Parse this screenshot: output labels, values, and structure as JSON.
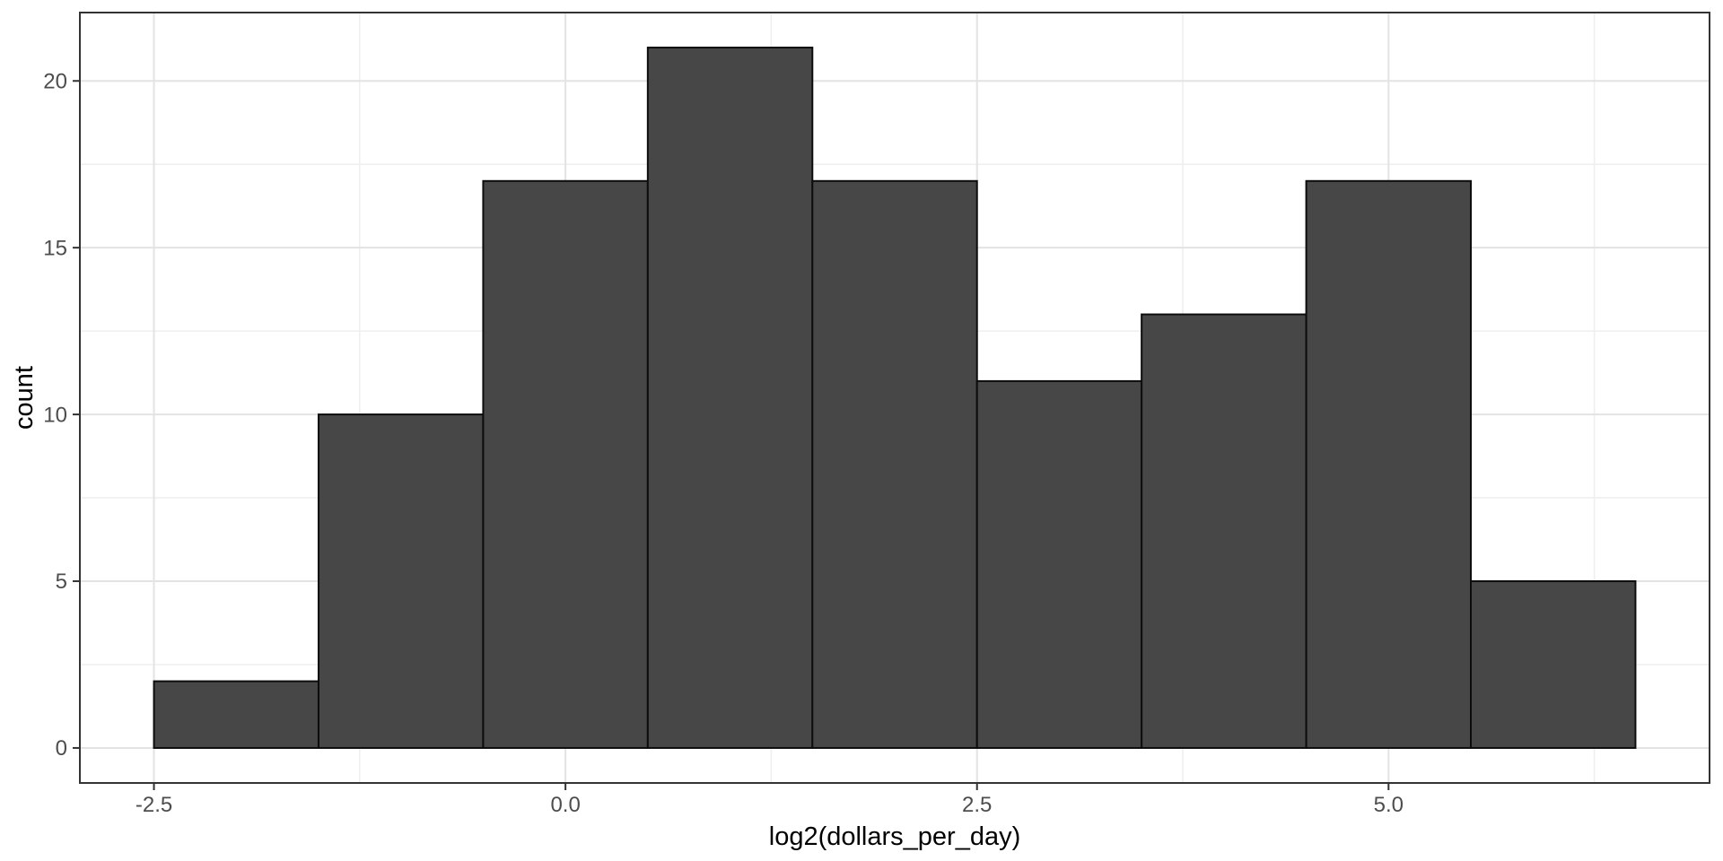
{
  "chart_data": {
    "type": "histogram",
    "title": "",
    "xlabel": "log2(dollars_per_day)",
    "ylabel": "count",
    "bin_start": -2.5,
    "bin_width": 1,
    "bin_edges": [
      -2.5,
      -1.5,
      -0.5,
      0.5,
      1.5,
      2.5,
      3.5,
      4.5,
      5.5,
      6.5
    ],
    "counts": [
      2,
      10,
      17,
      21,
      17,
      11,
      13,
      17,
      5
    ],
    "xlim": [
      -2.95,
      6.95
    ],
    "ylim": [
      -1.05,
      22.05
    ],
    "x_tick_values": [
      -2.5,
      0,
      2.5,
      5
    ],
    "x_tick_labels": [
      "-2.5",
      "0.0",
      "2.5",
      "5.0"
    ],
    "y_tick_values": [
      0,
      5,
      10,
      15,
      20
    ],
    "y_tick_labels": [
      "0",
      "5",
      "10",
      "15",
      "20"
    ],
    "x_minor_values": [
      -1.25,
      1.25,
      3.75,
      6.25
    ],
    "y_minor_values": [
      2.5,
      7.5,
      12.5,
      17.5
    ],
    "grid": true,
    "legend_position": "none",
    "colors": {
      "bar_fill": "#474747",
      "bar_stroke": "#0d0d0d",
      "panel_background": "#ffffff",
      "panel_border": "#333333",
      "grid_major": "#e3e3e3",
      "grid_minor": "#efefef",
      "tick_mark": "#333333",
      "tick_label": "#4d4d4d",
      "axis_title": "#000000"
    }
  }
}
